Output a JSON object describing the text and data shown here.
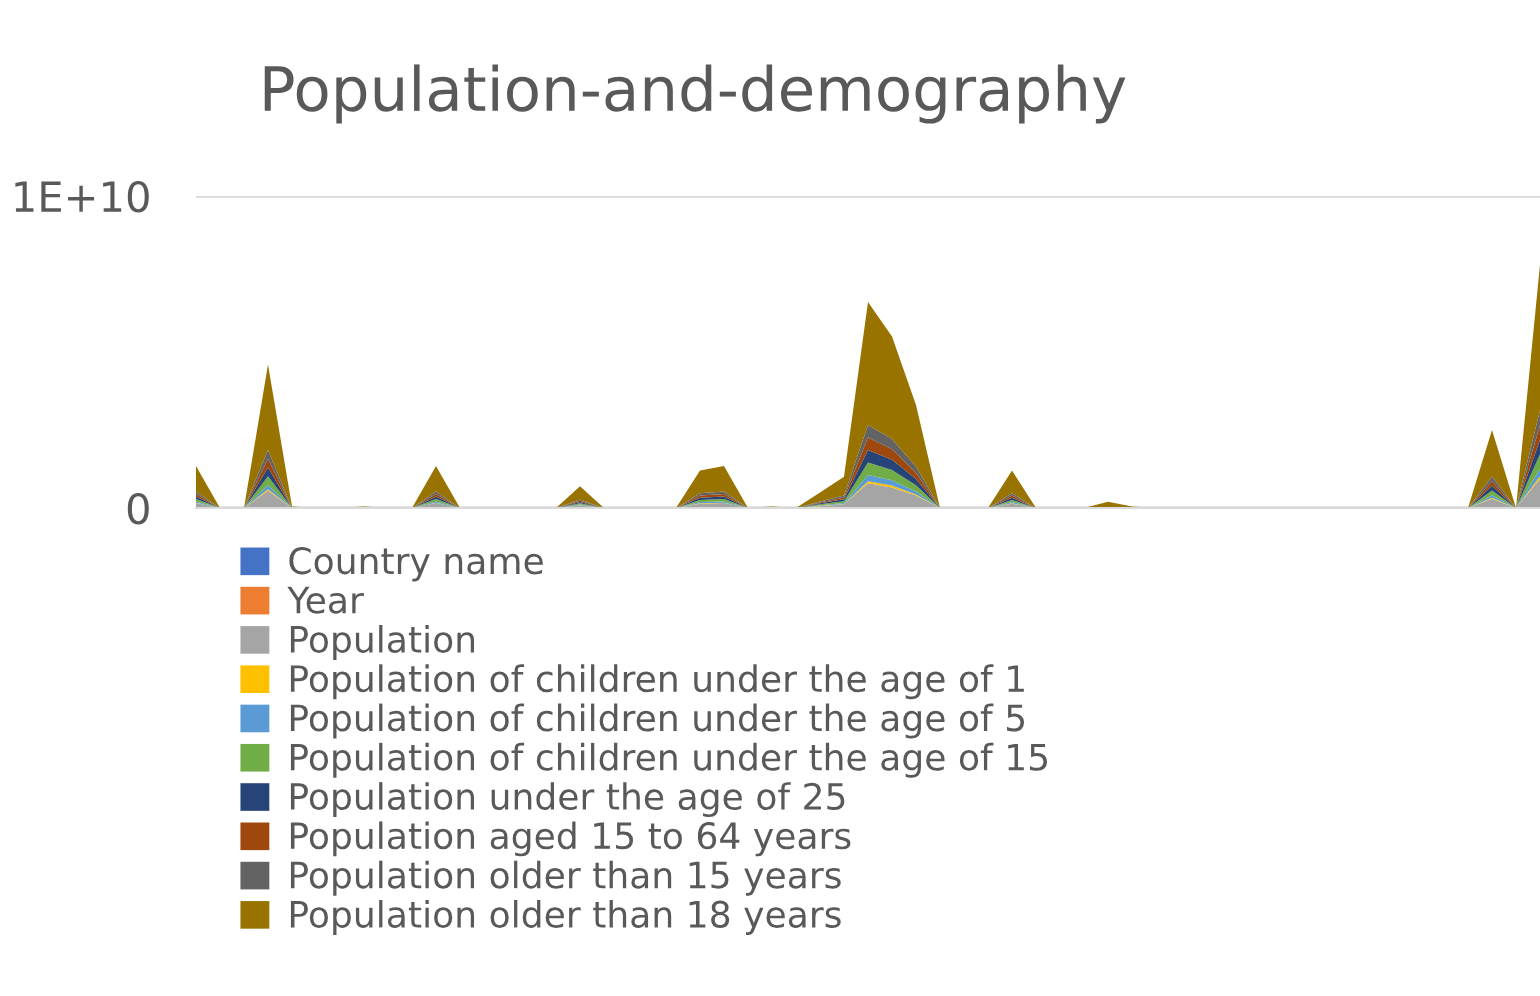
{
  "chart_data": {
    "type": "area",
    "title": "Population-and-demography",
    "stacked": true,
    "categories": [
      null,
      null,
      null,
      null,
      null,
      null,
      null,
      null,
      null,
      null,
      null,
      null,
      null,
      null,
      null,
      null,
      null,
      null,
      null,
      null,
      null,
      null,
      null,
      null,
      null,
      null,
      null,
      null,
      null,
      null,
      null,
      null,
      null,
      null,
      null,
      null,
      null,
      null,
      null,
      null,
      null,
      null,
      null,
      null,
      null,
      null,
      null,
      null,
      null,
      null,
      null,
      null,
      null,
      null,
      null,
      null,
      null
    ],
    "ylim": [
      0,
      10000000000.0
    ],
    "yticks": [
      0,
      {
        "value": 10000000000.0,
        "label": "1E+10"
      }
    ],
    "grid": "y",
    "legend": "bottom",
    "series": [
      {
        "name": "Country name",
        "color": "#4472c4",
        "values": [
          null,
          null,
          null,
          null,
          null,
          null,
          null,
          null,
          null,
          null,
          null,
          null,
          null,
          null,
          null,
          null,
          null,
          null,
          null,
          null,
          null,
          null,
          null,
          null,
          null,
          null,
          null,
          null,
          null,
          null,
          null,
          null,
          null,
          null,
          null,
          null,
          null,
          null,
          null,
          null,
          null,
          null,
          null,
          null,
          null,
          null,
          null,
          null,
          null,
          null,
          null,
          null,
          null,
          null,
          null,
          null,
          null
        ]
      },
      {
        "name": "Year",
        "color": "#ed7d31",
        "values": [
          null,
          null,
          null,
          null,
          null,
          null,
          null,
          null,
          null,
          null,
          null,
          null,
          null,
          null,
          null,
          null,
          null,
          null,
          null,
          null,
          null,
          null,
          null,
          null,
          null,
          null,
          null,
          null,
          null,
          null,
          null,
          null,
          null,
          null,
          null,
          null,
          null,
          null,
          null,
          null,
          null,
          null,
          null,
          null,
          null,
          null,
          null,
          null,
          null,
          null,
          null,
          null,
          null,
          null,
          null,
          null,
          null
        ]
      },
      {
        "name": "Population",
        "color": "#a5a5a5",
        "values": [
          160000000.0,
          0,
          0,
          550000000.0,
          0,
          0,
          0,
          0,
          0,
          0,
          160000000.0,
          0,
          0,
          0,
          0,
          0,
          80000000.0,
          0,
          0,
          0,
          0,
          140000000.0,
          160000000.0,
          0,
          0,
          0,
          60000000.0,
          120000000.0,
          790000000.0,
          660000000.0,
          400000000.0,
          0,
          0,
          0,
          140000000.0,
          0,
          0,
          0,
          0,
          0,
          0,
          0,
          0,
          0,
          0,
          0,
          0,
          0,
          0,
          0,
          0,
          0,
          0,
          0,
          300000000.0,
          0,
          940000000.0
        ]
      },
      {
        "name": "Population of children under the age of 1",
        "color": "#ffc000",
        "values": [
          10000000.0,
          0,
          0,
          50000000.0,
          0,
          0,
          0,
          0,
          0,
          0,
          10000000.0,
          0,
          0,
          0,
          0,
          0,
          10000000.0,
          0,
          0,
          0,
          0,
          10000000.0,
          10000000.0,
          0,
          0,
          0,
          10000000.0,
          10000000.0,
          70000000.0,
          60000000.0,
          30000000.0,
          0,
          0,
          0,
          10000000.0,
          0,
          0,
          0,
          0,
          0,
          0,
          0,
          0,
          0,
          0,
          0,
          0,
          0,
          0,
          0,
          0,
          0,
          0,
          0,
          30000000.0,
          0,
          80000000.0
        ]
      },
      {
        "name": "Population of children under the age of 5",
        "color": "#5b9bd5",
        "values": [
          40000000.0,
          0,
          0,
          140000000.0,
          0,
          0,
          0,
          0,
          0,
          0,
          40000000.0,
          0,
          0,
          0,
          0,
          0,
          20000000.0,
          0,
          0,
          0,
          0,
          40000000.0,
          40000000.0,
          0,
          0,
          0,
          20000000.0,
          30000000.0,
          200000000.0,
          170000000.0,
          100000000.0,
          0,
          0,
          0,
          40000000.0,
          0,
          0,
          0,
          0,
          0,
          0,
          0,
          0,
          0,
          0,
          0,
          0,
          0,
          0,
          0,
          0,
          0,
          0,
          0,
          80000000.0,
          0,
          230000000.0
        ]
      },
      {
        "name": "Population of children under the age of 15",
        "color": "#70ad47",
        "values": [
          80000000.0,
          0,
          0,
          280000000.0,
          0,
          0,
          0,
          0,
          0,
          0,
          80000000.0,
          0,
          0,
          0,
          0,
          0,
          40000000.0,
          0,
          0,
          0,
          0,
          70000000.0,
          80000000.0,
          0,
          0,
          0,
          30000000.0,
          60000000.0,
          400000000.0,
          330000000.0,
          200000000.0,
          0,
          0,
          0,
          70000000.0,
          0,
          0,
          0,
          0,
          0,
          0,
          0,
          0,
          0,
          0,
          0,
          0,
          0,
          0,
          0,
          0,
          0,
          0,
          0,
          150000000.0,
          0,
          470000000.0
        ]
      },
      {
        "name": "Population under the age of 25",
        "color": "#264478",
        "values": [
          80000000.0,
          0,
          0,
          280000000.0,
          0,
          0,
          0,
          0,
          0,
          0,
          80000000.0,
          0,
          0,
          0,
          0,
          0,
          40000000.0,
          0,
          0,
          0,
          0,
          70000000.0,
          80000000.0,
          0,
          0,
          0,
          30000000.0,
          60000000.0,
          400000000.0,
          330000000.0,
          200000000.0,
          0,
          0,
          0,
          70000000.0,
          0,
          0,
          0,
          0,
          0,
          0,
          0,
          0,
          0,
          0,
          0,
          0,
          0,
          0,
          0,
          0,
          0,
          0,
          0,
          150000000.0,
          0,
          470000000.0
        ]
      },
      {
        "name": "Population aged 15 to 64 years",
        "color": "#9e480e",
        "values": [
          80000000.0,
          0,
          0,
          280000000.0,
          0,
          0,
          0,
          0,
          0,
          0,
          80000000.0,
          0,
          0,
          0,
          0,
          0,
          40000000.0,
          0,
          0,
          0,
          0,
          70000000.0,
          80000000.0,
          0,
          0,
          0,
          30000000.0,
          60000000.0,
          400000000.0,
          330000000.0,
          200000000.0,
          0,
          0,
          0,
          70000000.0,
          0,
          0,
          0,
          0,
          0,
          0,
          0,
          0,
          0,
          0,
          0,
          0,
          0,
          0,
          0,
          0,
          0,
          0,
          0,
          150000000.0,
          0,
          470000000.0
        ]
      },
      {
        "name": "Population older than 15 years",
        "color": "#636363",
        "values": [
          80000000.0,
          0,
          0,
          280000000.0,
          0,
          0,
          0,
          0,
          0,
          0,
          80000000.0,
          0,
          0,
          0,
          0,
          0,
          40000000.0,
          0,
          0,
          0,
          0,
          70000000.0,
          80000000.0,
          0,
          0,
          0,
          30000000.0,
          60000000.0,
          400000000.0,
          330000000.0,
          200000000.0,
          0,
          0,
          0,
          70000000.0,
          0,
          0,
          0,
          0,
          0,
          0,
          0,
          0,
          0,
          0,
          0,
          0,
          0,
          0,
          0,
          0,
          0,
          0,
          0,
          150000000.0,
          0,
          470000000.0
        ]
      },
      {
        "name": "Population older than 18 years",
        "color": "#997300",
        "values": [
          820000000.0,
          0,
          0,
          2740000000.0,
          50000000.0,
          0,
          0,
          50000000.0,
          0,
          0,
          820000000.0,
          0,
          0,
          0,
          0,
          0,
          430000000.0,
          0,
          0,
          0,
          0,
          730000000.0,
          820000000.0,
          0,
          50000000.0,
          0,
          290000000.0,
          600000000.0,
          3940000000.0,
          3290000000.0,
          1970000000.0,
          0,
          0,
          0,
          730000000.0,
          0,
          0,
          0,
          200000000.0,
          50000000.0,
          0,
          0,
          0,
          0,
          0,
          0,
          0,
          0,
          0,
          0,
          0,
          0,
          0,
          0,
          1490000000.0,
          0,
          4670000000.0
        ]
      }
    ]
  }
}
